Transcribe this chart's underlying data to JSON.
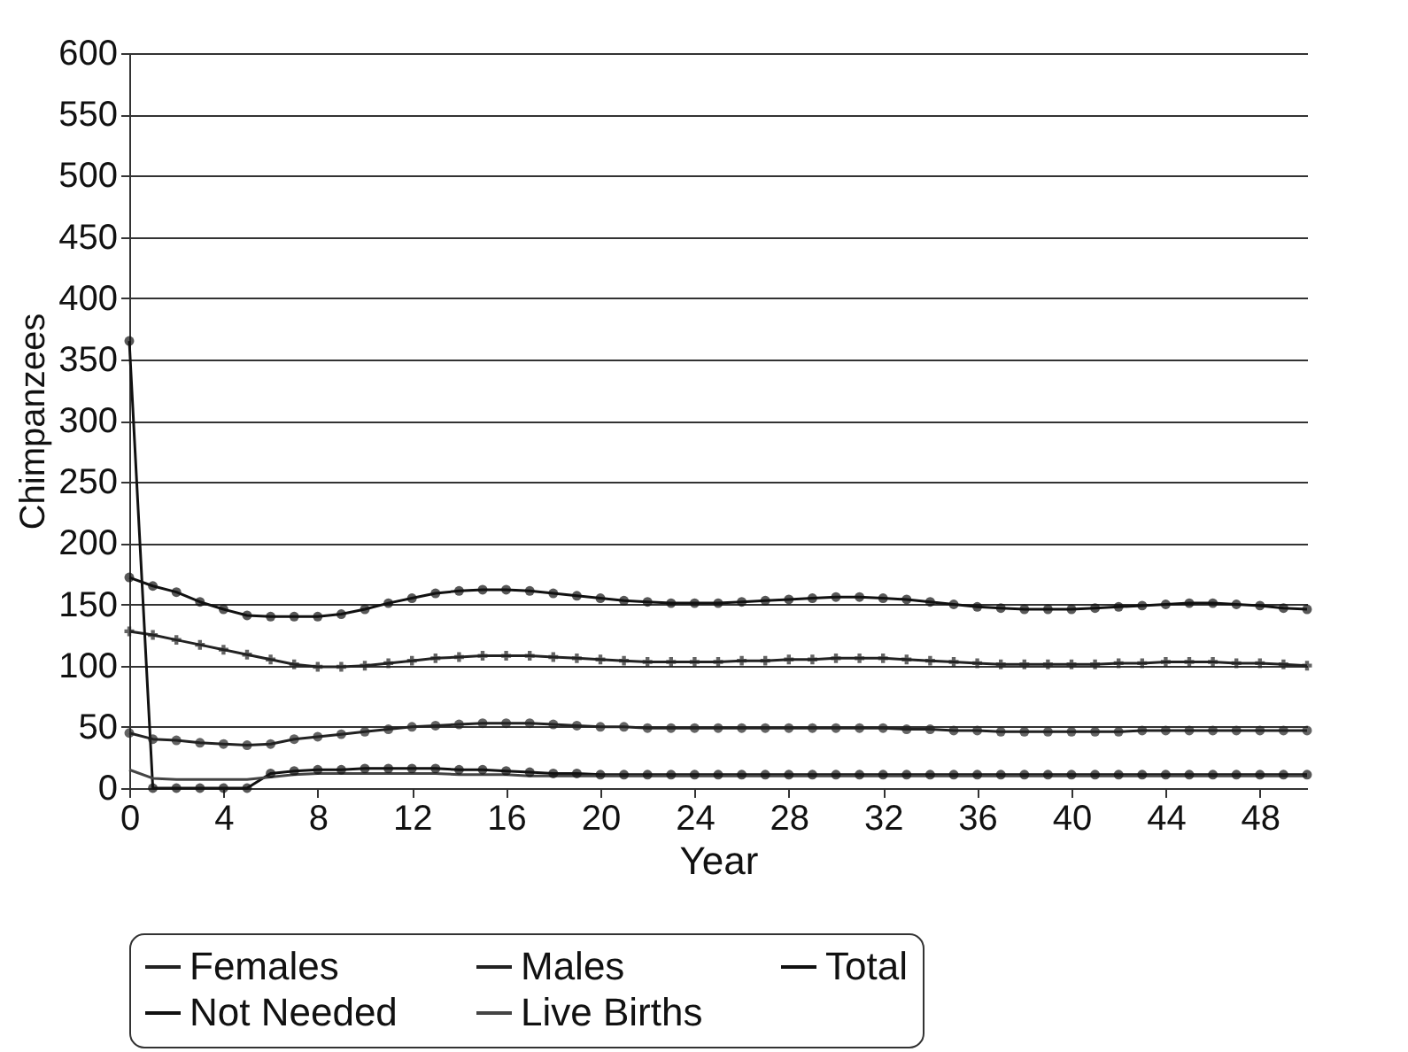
{
  "chart_data": {
    "type": "line",
    "xlabel": "Year",
    "ylabel": "Chimpanzees",
    "x": [
      0,
      1,
      2,
      3,
      4,
      5,
      6,
      7,
      8,
      9,
      10,
      11,
      12,
      13,
      14,
      15,
      16,
      17,
      18,
      19,
      20,
      21,
      22,
      23,
      24,
      25,
      26,
      27,
      28,
      29,
      30,
      31,
      32,
      33,
      34,
      35,
      36,
      37,
      38,
      39,
      40,
      41,
      42,
      43,
      44,
      45,
      46,
      47,
      48,
      49,
      50
    ],
    "series": [
      {
        "name": "Females",
        "color": "#222222",
        "marker": "cross",
        "values": [
          128,
          125,
          121,
          117,
          113,
          109,
          105,
          101,
          99,
          99,
          100,
          102,
          104,
          106,
          107,
          108,
          108,
          108,
          107,
          106,
          105,
          104,
          103,
          103,
          103,
          103,
          104,
          104,
          105,
          105,
          106,
          106,
          106,
          105,
          104,
          103,
          102,
          101,
          101,
          101,
          101,
          101,
          102,
          102,
          103,
          103,
          103,
          102,
          102,
          101,
          100
        ]
      },
      {
        "name": "Males",
        "color": "#222222",
        "marker": "circle",
        "values": [
          45,
          40,
          39,
          37,
          36,
          35,
          36,
          40,
          42,
          44,
          46,
          48,
          50,
          51,
          52,
          53,
          53,
          53,
          52,
          51,
          50,
          50,
          49,
          49,
          49,
          49,
          49,
          49,
          49,
          49,
          49,
          49,
          49,
          48,
          48,
          47,
          47,
          46,
          46,
          46,
          46,
          46,
          46,
          47,
          47,
          47,
          47,
          47,
          47,
          47,
          47
        ]
      },
      {
        "name": "Total",
        "color": "#111111",
        "marker": "circle",
        "values": [
          172,
          165,
          160,
          152,
          146,
          141,
          140,
          140,
          140,
          142,
          146,
          151,
          155,
          159,
          161,
          162,
          162,
          161,
          159,
          157,
          155,
          153,
          152,
          151,
          151,
          151,
          152,
          153,
          154,
          155,
          156,
          156,
          155,
          154,
          152,
          150,
          148,
          147,
          146,
          146,
          146,
          147,
          148,
          149,
          150,
          151,
          151,
          150,
          149,
          147,
          146
        ]
      },
      {
        "name": "Not Needed",
        "color": "#111111",
        "marker": "circle",
        "values": [
          365,
          0,
          0,
          0,
          0,
          0,
          12,
          14,
          15,
          15,
          16,
          16,
          16,
          16,
          15,
          15,
          14,
          13,
          12,
          12,
          11,
          11,
          11,
          11,
          11,
          11,
          11,
          11,
          11,
          11,
          11,
          11,
          11,
          11,
          11,
          11,
          11,
          11,
          11,
          11,
          11,
          11,
          11,
          11,
          11,
          11,
          11,
          11,
          11,
          11,
          11
        ]
      },
      {
        "name": "Live Births",
        "color": "#444444",
        "marker": "none",
        "values": [
          15,
          8,
          7,
          7,
          7,
          7,
          9,
          11,
          12,
          12,
          12,
          12,
          12,
          12,
          11,
          11,
          11,
          10,
          10,
          10,
          10,
          10,
          10,
          10,
          10,
          10,
          10,
          10,
          10,
          10,
          10,
          10,
          10,
          10,
          10,
          10,
          10,
          10,
          10,
          10,
          10,
          10,
          10,
          10,
          10,
          10,
          10,
          10,
          10,
          10,
          10
        ]
      }
    ],
    "xlim": [
      0,
      50
    ],
    "xticks": [
      0,
      4,
      8,
      12,
      16,
      20,
      24,
      28,
      32,
      36,
      40,
      44,
      48
    ],
    "ylim": [
      0,
      600
    ],
    "yticks": [
      0,
      50,
      100,
      150,
      200,
      250,
      300,
      350,
      400,
      450,
      500,
      550,
      600
    ],
    "grid": "y",
    "legend": "bottom",
    "line_style": "solid"
  }
}
